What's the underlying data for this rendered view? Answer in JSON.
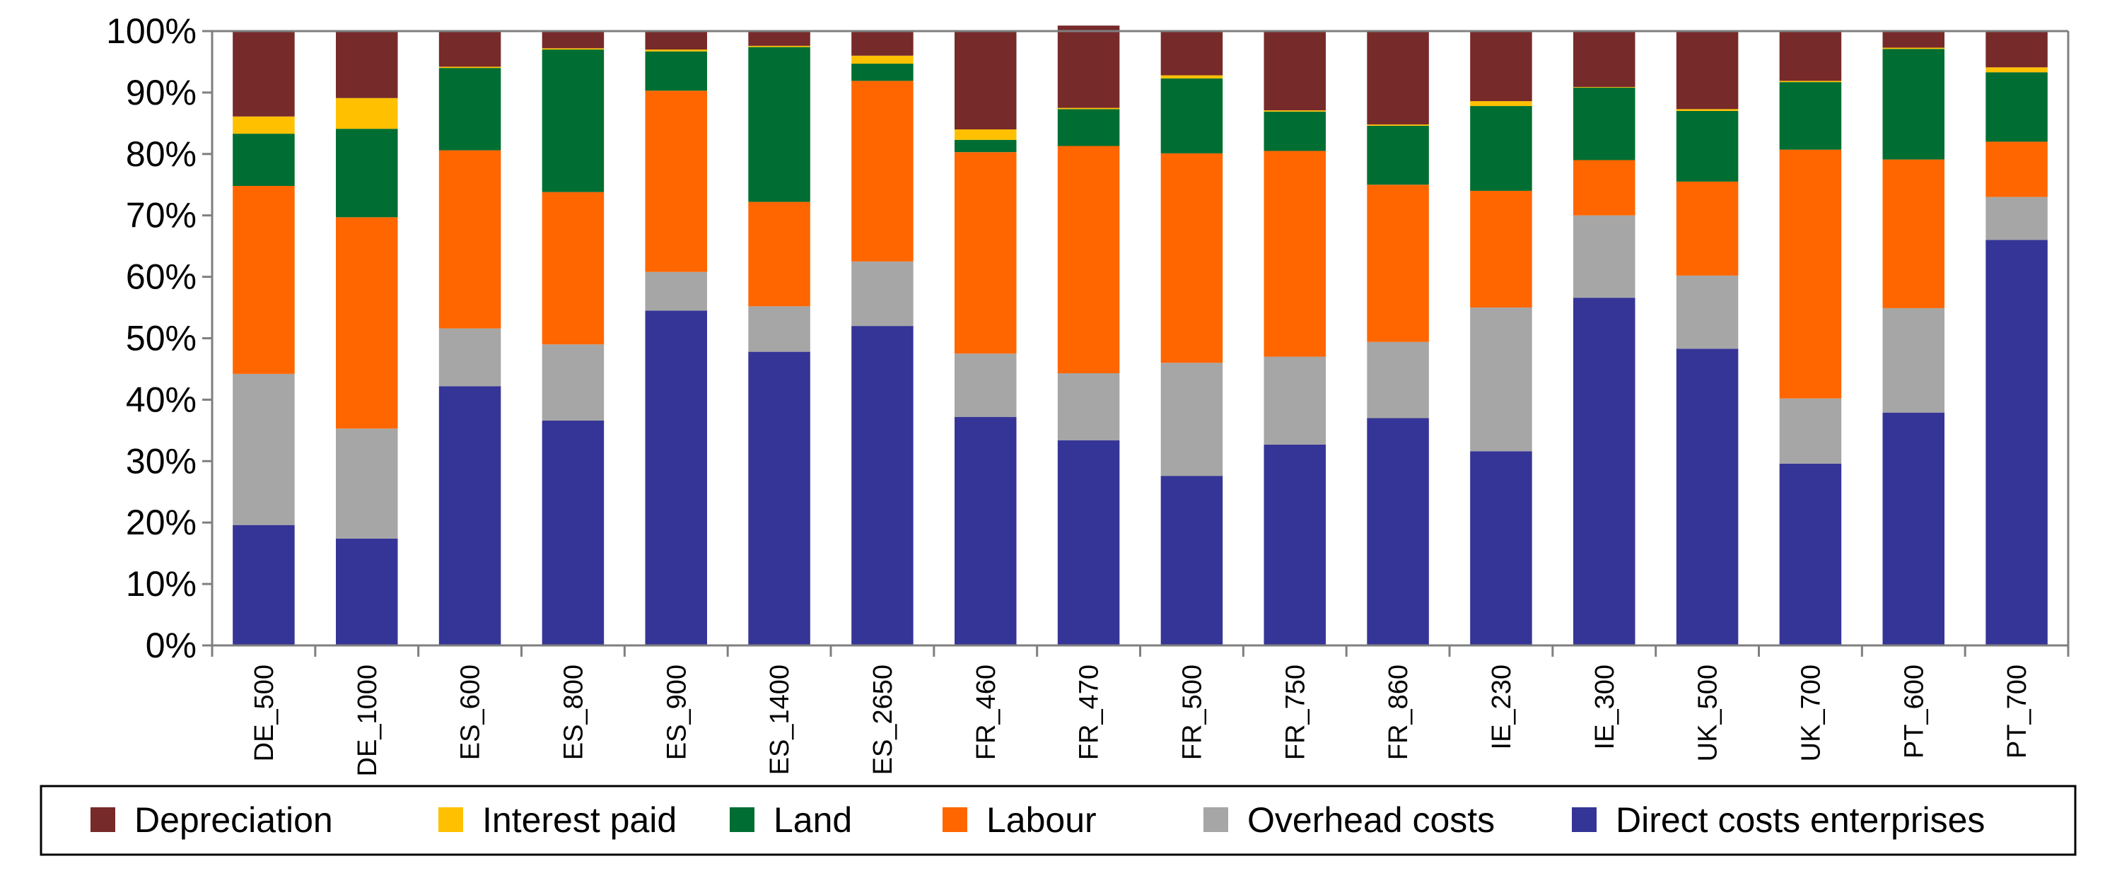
{
  "chart_data": {
    "type": "bar",
    "stacked": true,
    "title": "",
    "xlabel": "",
    "ylabel": "",
    "ylim": [
      0,
      100
    ],
    "y_ticks": [
      "0%",
      "10%",
      "20%",
      "30%",
      "40%",
      "50%",
      "60%",
      "70%",
      "80%",
      "90%",
      "100%"
    ],
    "categories": [
      "DE_500",
      "DE_1000",
      "ES_600",
      "ES_800",
      "ES_900",
      "ES_1400",
      "ES_2650",
      "FR_460",
      "FR_470",
      "FR_500",
      "FR_750",
      "FR_860",
      "IE_230",
      "IE_300",
      "UK_500",
      "UK_700",
      "PT_600",
      "PT_700"
    ],
    "legend_position": "bottom",
    "series": [
      {
        "name": "Direct costs enterprises",
        "color": "#353597",
        "values": [
          19.6,
          17.4,
          42.2,
          36.6,
          54.5,
          47.8,
          52.0,
          37.2,
          33.4,
          27.6,
          32.7,
          37.0,
          31.6,
          56.6,
          48.3,
          29.6,
          37.9,
          66.0
        ]
      },
      {
        "name": "Overhead costs",
        "color": "#a6a6a6",
        "values": [
          24.6,
          17.9,
          9.4,
          12.4,
          6.3,
          7.4,
          10.5,
          10.3,
          10.9,
          18.4,
          14.3,
          12.4,
          23.4,
          13.4,
          11.9,
          10.6,
          17.0,
          7.0
        ]
      },
      {
        "name": "Labour",
        "color": "#ff6600",
        "values": [
          30.6,
          34.4,
          29.0,
          24.8,
          29.5,
          17.0,
          29.4,
          32.8,
          37.0,
          34.1,
          33.5,
          25.6,
          19.0,
          9.0,
          15.3,
          40.5,
          24.2,
          9.0
        ]
      },
      {
        "name": "Land",
        "color": "#006e32",
        "values": [
          8.5,
          14.4,
          13.4,
          23.2,
          6.4,
          25.2,
          2.8,
          2.0,
          6.0,
          12.2,
          6.4,
          9.6,
          13.8,
          11.8,
          11.5,
          11.0,
          18.0,
          11.3
        ]
      },
      {
        "name": "Interest paid",
        "color": "#ffc000",
        "values": [
          2.8,
          5.0,
          0.2,
          0.2,
          0.3,
          0.2,
          1.3,
          1.7,
          0.2,
          0.5,
          0.2,
          0.2,
          0.8,
          0.1,
          0.3,
          0.2,
          0.2,
          0.8
        ]
      },
      {
        "name": "Depreciation",
        "color": "#772a2a",
        "values": [
          13.9,
          10.9,
          5.8,
          2.8,
          3.0,
          2.4,
          4.0,
          16.0,
          13.4,
          7.2,
          12.9,
          15.2,
          11.4,
          9.1,
          12.7,
          8.1,
          2.7,
          5.9
        ]
      }
    ],
    "legend_order": [
      "Depreciation",
      "Interest paid",
      "Land",
      "Labour",
      "Overhead costs",
      "Direct costs enterprises"
    ],
    "grid": false
  }
}
